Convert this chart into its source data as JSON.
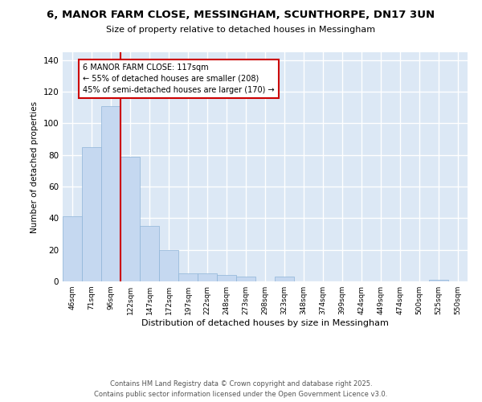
{
  "title": "6, MANOR FARM CLOSE, MESSINGHAM, SCUNTHORPE, DN17 3UN",
  "subtitle": "Size of property relative to detached houses in Messingham",
  "xlabel": "Distribution of detached houses by size in Messingham",
  "ylabel": "Number of detached properties",
  "categories": [
    "46sqm",
    "71sqm",
    "96sqm",
    "122sqm",
    "147sqm",
    "172sqm",
    "197sqm",
    "222sqm",
    "248sqm",
    "273sqm",
    "298sqm",
    "323sqm",
    "348sqm",
    "374sqm",
    "399sqm",
    "424sqm",
    "449sqm",
    "474sqm",
    "500sqm",
    "525sqm",
    "550sqm"
  ],
  "values": [
    41,
    85,
    111,
    79,
    35,
    20,
    5,
    5,
    4,
    3,
    0,
    3,
    0,
    0,
    0,
    0,
    0,
    0,
    0,
    1,
    0
  ],
  "bar_color": "#c5d8f0",
  "bar_edge_color": "#8fb4d8",
  "property_line_x": 3.0,
  "property_line_color": "#cc0000",
  "annotation_text": "6 MANOR FARM CLOSE: 117sqm\n← 55% of detached houses are smaller (208)\n45% of semi-detached houses are larger (170) →",
  "annotation_box_color": "#cc0000",
  "ylim": [
    0,
    145
  ],
  "yticks": [
    0,
    20,
    40,
    60,
    80,
    100,
    120,
    140
  ],
  "background_color": "#dce8f5",
  "grid_color": "#ffffff",
  "footer_line1": "Contains HM Land Registry data © Crown copyright and database right 2025.",
  "footer_line2": "Contains public sector information licensed under the Open Government Licence v3.0."
}
